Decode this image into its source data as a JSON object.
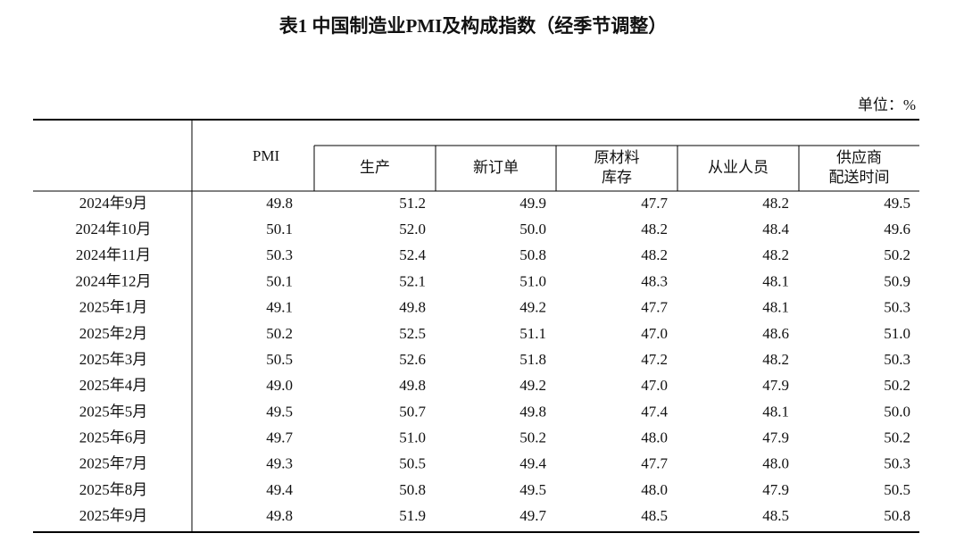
{
  "header": {
    "title": "表1 中国制造业PMI及构成指数（经季节调整）",
    "unit": "单位：%"
  },
  "table": {
    "pmi_header": "PMI",
    "component_headers": [
      [
        "生产"
      ],
      [
        "新订单"
      ],
      [
        "原材料",
        "库存"
      ],
      [
        "从业人员"
      ],
      [
        "供应商",
        "配送时间"
      ]
    ],
    "rows": [
      [
        "2024年9月",
        "49.8",
        "51.2",
        "49.9",
        "47.7",
        "48.2",
        "49.5"
      ],
      [
        "2024年10月",
        "50.1",
        "52.0",
        "50.0",
        "48.2",
        "48.4",
        "49.6"
      ],
      [
        "2024年11月",
        "50.3",
        "52.4",
        "50.8",
        "48.2",
        "48.2",
        "50.2"
      ],
      [
        "2024年12月",
        "50.1",
        "52.1",
        "51.0",
        "48.3",
        "48.1",
        "50.9"
      ],
      [
        "2025年1月",
        "49.1",
        "49.8",
        "49.2",
        "47.7",
        "48.1",
        "50.3"
      ],
      [
        "2025年2月",
        "50.2",
        "52.5",
        "51.1",
        "47.0",
        "48.6",
        "51.0"
      ],
      [
        "2025年3月",
        "50.5",
        "52.6",
        "51.8",
        "47.2",
        "48.2",
        "50.3"
      ],
      [
        "2025年4月",
        "49.0",
        "49.8",
        "49.2",
        "47.0",
        "47.9",
        "50.2"
      ],
      [
        "2025年5月",
        "49.5",
        "50.7",
        "49.8",
        "47.4",
        "48.1",
        "50.0"
      ],
      [
        "2025年6月",
        "49.7",
        "51.0",
        "50.2",
        "48.0",
        "47.9",
        "50.2"
      ],
      [
        "2025年7月",
        "49.3",
        "50.5",
        "49.4",
        "47.7",
        "48.0",
        "50.3"
      ],
      [
        "2025年8月",
        "49.4",
        "50.8",
        "49.5",
        "48.0",
        "47.9",
        "50.5"
      ],
      [
        "2025年9月",
        "49.8",
        "51.9",
        "49.7",
        "48.5",
        "48.5",
        "50.8"
      ]
    ]
  }
}
